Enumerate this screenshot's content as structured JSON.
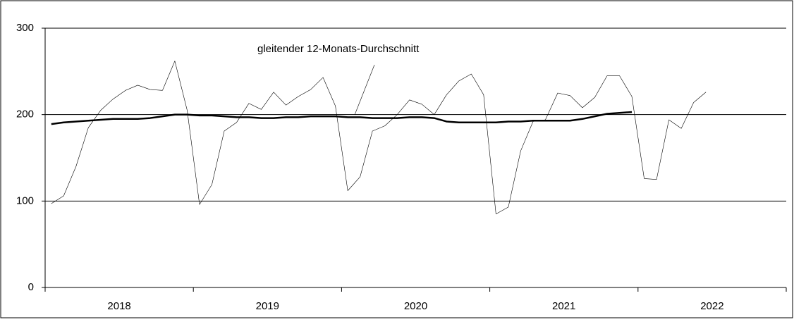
{
  "chart_data": {
    "type": "line",
    "annotation": "gleitender 12-Monats-Durchschnitt",
    "categories": [
      null,
      null,
      null,
      null,
      null,
      null,
      null,
      null,
      null,
      null,
      null,
      null,
      null,
      null,
      null,
      null,
      null,
      null,
      null,
      null,
      null,
      null,
      null,
      null,
      null,
      null,
      null,
      null,
      null,
      null,
      null,
      null,
      null,
      null,
      null,
      null,
      null,
      null,
      null,
      null,
      null,
      null,
      null,
      null,
      null,
      null,
      null,
      null,
      null,
      null,
      null,
      null,
      null,
      null,
      null,
      null,
      null,
      null,
      null,
      null
    ],
    "x_groups": [
      "2018",
      "2019",
      "2020",
      "2021",
      "2022"
    ],
    "series": [
      {
        "color": "#000000",
        "width": 0.6,
        "values": [
          97,
          106,
          140,
          185,
          205,
          218,
          228,
          234,
          229,
          228,
          262,
          205,
          96,
          119,
          181,
          191,
          213,
          206,
          226,
          211,
          221,
          229,
          243,
          210,
          112,
          128,
          181,
          187,
          200,
          217,
          212,
          200,
          223,
          239,
          247,
          223,
          85,
          93,
          158,
          192,
          194,
          225,
          222,
          208,
          220,
          245,
          245,
          221,
          126,
          125,
          194,
          184,
          214,
          226,
          null,
          null,
          null,
          null,
          null,
          null
        ]
      },
      {
        "color": "#000000",
        "width": 2.5,
        "values": [
          189,
          191,
          192,
          193,
          194,
          195,
          195,
          195,
          196,
          198,
          200,
          200,
          199,
          199,
          198,
          197,
          197,
          196,
          196,
          197,
          197,
          198,
          198,
          198,
          197,
          197,
          196,
          196,
          196,
          197,
          197,
          196,
          192,
          191,
          191,
          191,
          191,
          192,
          192,
          193,
          193,
          193,
          193,
          195,
          198,
          201,
          202,
          203,
          null,
          null,
          null,
          null,
          null,
          null,
          null,
          null,
          null,
          null,
          null,
          null
        ]
      }
    ],
    "ylim": [
      0,
      300
    ],
    "yticks": [
      0,
      100,
      200,
      300
    ],
    "grid": true
  }
}
